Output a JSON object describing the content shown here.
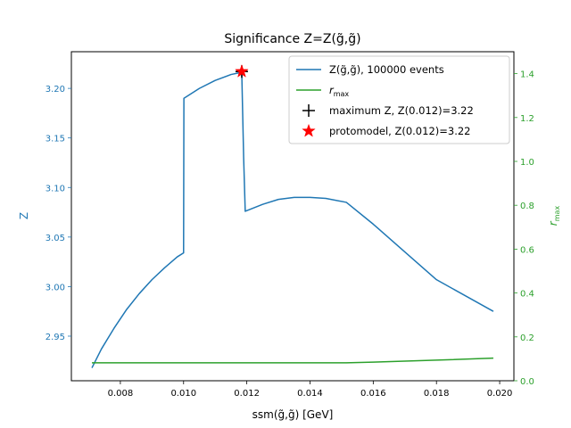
{
  "chart_data": {
    "type": "line",
    "title": "Significance Z=Z(g̃,g̃)",
    "xlabel": "ssm(g̃,g̃) [GeV]",
    "ylabel_left": "Z",
    "ylabel_right": "r_max",
    "xlim": [
      0.00645,
      0.02045
    ],
    "ylim_left": [
      2.905,
      3.237
    ],
    "ylim_right": [
      0.0,
      1.5
    ],
    "x_ticks": [
      "0.008",
      "0.010",
      "0.012",
      "0.014",
      "0.016",
      "0.018",
      "0.020"
    ],
    "y_left_ticks": [
      "2.95",
      "3.00",
      "3.05",
      "3.10",
      "3.15",
      "3.20"
    ],
    "y_right_ticks": [
      "0.0",
      "0.2",
      "0.4",
      "0.6",
      "0.8",
      "1.0",
      "1.2",
      "1.4"
    ],
    "series": [
      {
        "name": "Z(g̃,g̃), 100000 events",
        "axis": "left",
        "color": "#1f77b4",
        "x": [
          0.0071,
          0.0074,
          0.0078,
          0.0082,
          0.0086,
          0.009,
          0.0094,
          0.0098,
          0.01,
          0.01001,
          0.0105,
          0.011,
          0.0115,
          0.0118,
          0.01184,
          0.0119,
          0.01195,
          0.0125,
          0.013,
          0.0135,
          0.014,
          0.0145,
          0.01515,
          0.016,
          0.017,
          0.018,
          0.0198
        ],
        "y": [
          2.918,
          2.937,
          2.958,
          2.977,
          2.993,
          3.007,
          3.019,
          3.03,
          3.034,
          3.19,
          3.2,
          3.208,
          3.214,
          3.216,
          3.217,
          3.13,
          3.076,
          3.083,
          3.088,
          3.09,
          3.09,
          3.089,
          3.085,
          3.063,
          3.035,
          3.007,
          2.975
        ]
      },
      {
        "name": "r_max",
        "axis": "right",
        "color": "#2ca02c",
        "x": [
          0.0071,
          0.008,
          0.01,
          0.012,
          0.014,
          0.01515,
          0.016,
          0.018,
          0.0198
        ],
        "y": [
          0.082,
          0.082,
          0.082,
          0.082,
          0.082,
          0.082,
          0.085,
          0.094,
          0.103
        ]
      }
    ],
    "markers": [
      {
        "name": "maximum Z, Z(0.012)=3.22",
        "symbol": "plus",
        "color": "#000000",
        "x": 0.01184,
        "y": 3.217
      },
      {
        "name": "protomodel, Z(0.012)=3.22",
        "symbol": "star",
        "color": "#ff0000",
        "x": 0.01184,
        "y": 3.217
      }
    ],
    "legend": {
      "placement": "upper right",
      "entries": [
        {
          "key": "z",
          "main": "Z(g̃,g̃), 100000 events",
          "sub": ""
        },
        {
          "key": "r",
          "main": "r",
          "sub": "max"
        },
        {
          "key": "max",
          "main": "maximum Z, Z(0.012)=3.22",
          "sub": ""
        },
        {
          "key": "proto",
          "main": "protomodel, Z(0.012)=3.22",
          "sub": ""
        }
      ]
    },
    "colors": {
      "left_axis": "#1f77b4",
      "right_axis": "#2ca02c"
    }
  }
}
